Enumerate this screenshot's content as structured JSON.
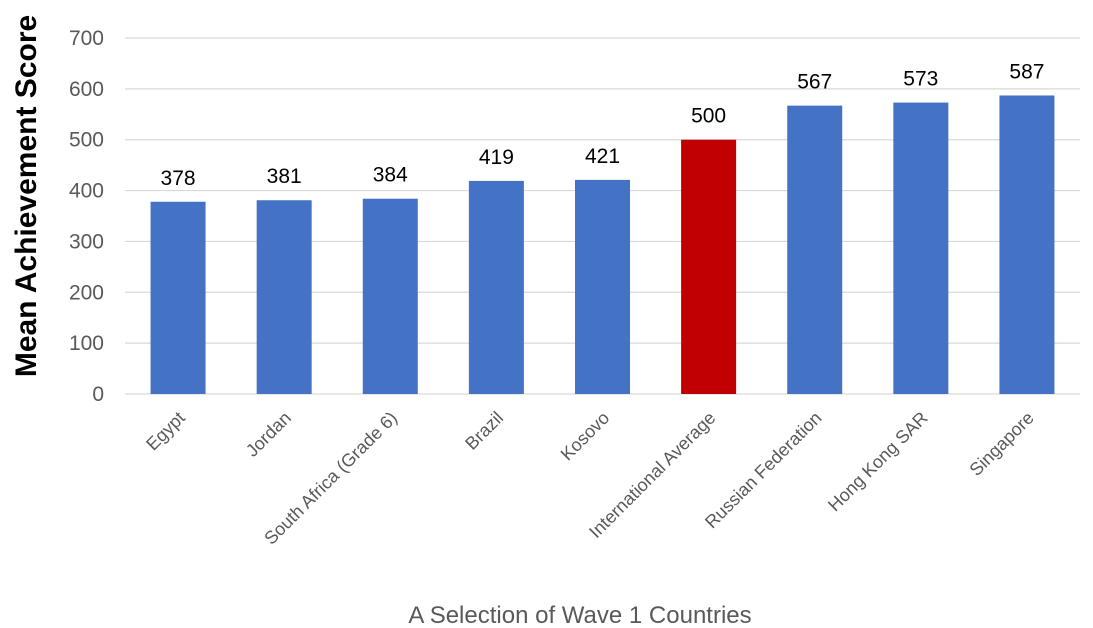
{
  "chart_data": {
    "type": "bar",
    "ylabel": "Mean Achievement Score",
    "xlabel": "A Selection of Wave 1 Countries",
    "ylim": [
      0,
      700
    ],
    "yticks": [
      0,
      100,
      200,
      300,
      400,
      500,
      600,
      700
    ],
    "grid": true,
    "categories": [
      "Egypt",
      "Jordan",
      "South Africa (Grade 6)",
      "Brazil",
      "Kosovo",
      "International Average",
      "Russian Federation",
      "Hong Kong SAR",
      "Singapore"
    ],
    "values": [
      378,
      381,
      384,
      419,
      421,
      500,
      567,
      573,
      587
    ],
    "colors": [
      "#4472c4",
      "#4472c4",
      "#4472c4",
      "#4472c4",
      "#4472c4",
      "#c00000",
      "#4472c4",
      "#4472c4",
      "#4472c4"
    ]
  }
}
